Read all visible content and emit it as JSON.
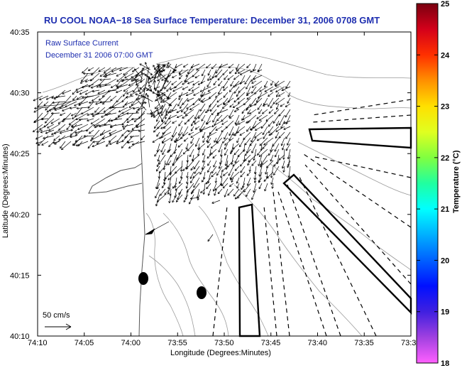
{
  "title": "RU COOL  NOAA−18  Sea Surface Temperature:  December 31, 2006 0708 GMT",
  "legend": {
    "line1": "Raw Surface Current",
    "line2": "December 31 2006 07:00 GMT",
    "scale_label": "50 cm/s"
  },
  "axes": {
    "xlabel": "Longitude (Degrees:Minutes)",
    "ylabel": "Latitude (Degrees:Minutes)",
    "xticks": [
      "74:10",
      "74:05",
      "74:00",
      "73:55",
      "73:50",
      "73:45",
      "73:40",
      "73:35",
      "73:3"
    ],
    "yticks": [
      "40:35",
      "40:30",
      "40:25",
      "40:20",
      "40:15",
      "40:10"
    ]
  },
  "colorbar": {
    "label": "Temperature (°C)",
    "ticks": [
      "25",
      "24",
      "23",
      "22",
      "21",
      "20",
      "19",
      "18"
    ],
    "colors": [
      "#7a0010",
      "#d4001a",
      "#ff3000",
      "#ff9000",
      "#ffe000",
      "#e0ff20",
      "#80ff40",
      "#20ffa0",
      "#00ffff",
      "#00b0ff",
      "#0060ff",
      "#0010ff",
      "#4020e0",
      "#a040e0",
      "#ff60ff"
    ]
  },
  "map": {
    "land_color": "#ffffff",
    "contour_color": "#9a9a9a",
    "vector_color": "#000000",
    "markers": 2
  }
}
